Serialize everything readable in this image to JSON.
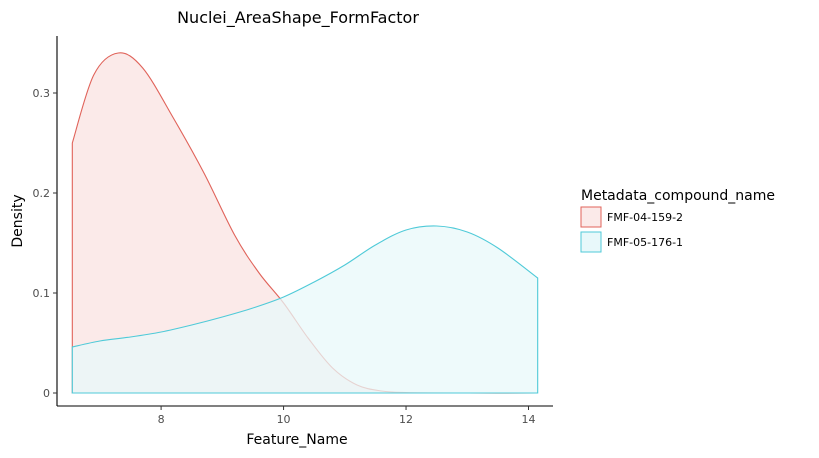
{
  "chart_data": {
    "type": "area",
    "title": "Nuclei_AreaShape_FormFactor",
    "xlabel": "Feature_Name",
    "ylabel": "Density",
    "xlim": [
      6.3,
      14.4
    ],
    "ylim": [
      -0.013,
      0.357
    ],
    "x_ticks": [
      8,
      10,
      12,
      14
    ],
    "y_ticks": [
      0,
      0.1,
      0.2,
      0.3
    ],
    "x_tick_labels": [
      "8",
      "10",
      "12",
      "14"
    ],
    "y_tick_labels": [
      "0",
      "0.1",
      "0.2",
      "0.3"
    ],
    "grid": false,
    "legend": {
      "title": "Metadata_compound_name",
      "position": "right"
    },
    "series": [
      {
        "name": "FMF-04-159-2",
        "color": "#E0635A",
        "fill": "#FBEAE9",
        "x": [
          6.55,
          6.9,
          7.3,
          7.7,
          8.2,
          8.7,
          9.2,
          9.6,
          10.0,
          10.4,
          10.8,
          11.2,
          11.6,
          12.0,
          13.0,
          14.15
        ],
        "y": [
          0.25,
          0.318,
          0.34,
          0.325,
          0.275,
          0.22,
          0.158,
          0.12,
          0.09,
          0.055,
          0.025,
          0.008,
          0.002,
          0.0005,
          0.0,
          0.0
        ]
      },
      {
        "name": "FMF-05-176-1",
        "color": "#4FCAD8",
        "fill": "#E8F8FA",
        "x": [
          6.55,
          7.0,
          7.5,
          8.0,
          8.5,
          9.0,
          9.5,
          10.0,
          10.5,
          11.0,
          11.5,
          12.0,
          12.5,
          13.0,
          13.5,
          14.15
        ],
        "y": [
          0.046,
          0.052,
          0.056,
          0.061,
          0.068,
          0.076,
          0.085,
          0.096,
          0.111,
          0.128,
          0.148,
          0.163,
          0.167,
          0.161,
          0.145,
          0.115
        ]
      }
    ]
  }
}
